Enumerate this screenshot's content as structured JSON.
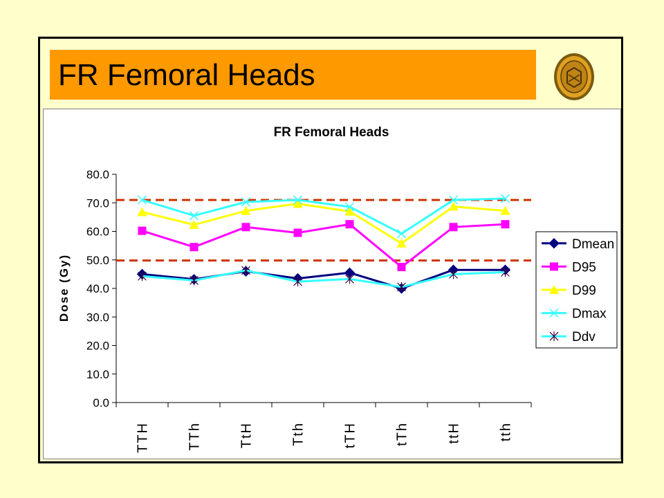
{
  "slide": {
    "title": "FR Femoral Heads"
  },
  "colors": {
    "background": "#FFFFCC",
    "title_bar": "#FF9900",
    "reference_line": "#CC3300"
  },
  "chart_data": {
    "type": "line",
    "title": "FR Femoral Heads",
    "xlabel": "",
    "ylabel": "Dose (Gy)",
    "ylim": [
      0,
      80
    ],
    "ytick_step": 10,
    "ytick_labels": [
      "0.0",
      "10.0",
      "20.0",
      "30.0",
      "40.0",
      "50.0",
      "60.0",
      "70.0",
      "80.0"
    ],
    "grid": false,
    "legend_position": "right",
    "categories": [
      "TTH",
      "TTh",
      "TtH",
      "Tth",
      "tTH",
      "tTh",
      "ttH",
      "tth"
    ],
    "series": [
      {
        "name": "Dmean",
        "color": "#000080",
        "marker": "diamond",
        "values": [
          45.0,
          43.2,
          46.0,
          43.5,
          45.5,
          40.0,
          46.5,
          46.5
        ]
      },
      {
        "name": "D95",
        "color": "#FF00FF",
        "marker": "square",
        "values": [
          60.2,
          54.5,
          61.5,
          59.5,
          62.5,
          47.5,
          61.5,
          62.5
        ]
      },
      {
        "name": "D99",
        "color": "#FFFF00",
        "marker": "triangle",
        "values": [
          66.8,
          62.3,
          67.2,
          69.7,
          67.0,
          55.8,
          68.7,
          67.2
        ]
      },
      {
        "name": "Dmax",
        "color": "#33FFFF",
        "marker": "x",
        "values": [
          71.0,
          65.5,
          70.3,
          71.0,
          68.6,
          59.2,
          71.0,
          71.5
        ]
      },
      {
        "name": "Ddv",
        "color": "#33FFFF",
        "marker": "star",
        "values": [
          44.3,
          42.8,
          46.3,
          42.4,
          43.3,
          40.5,
          45.0,
          45.7
        ]
      }
    ],
    "reference_lines": [
      {
        "y": 71.0,
        "style": "dashed"
      },
      {
        "y": 49.8,
        "style": "dashed"
      }
    ]
  }
}
